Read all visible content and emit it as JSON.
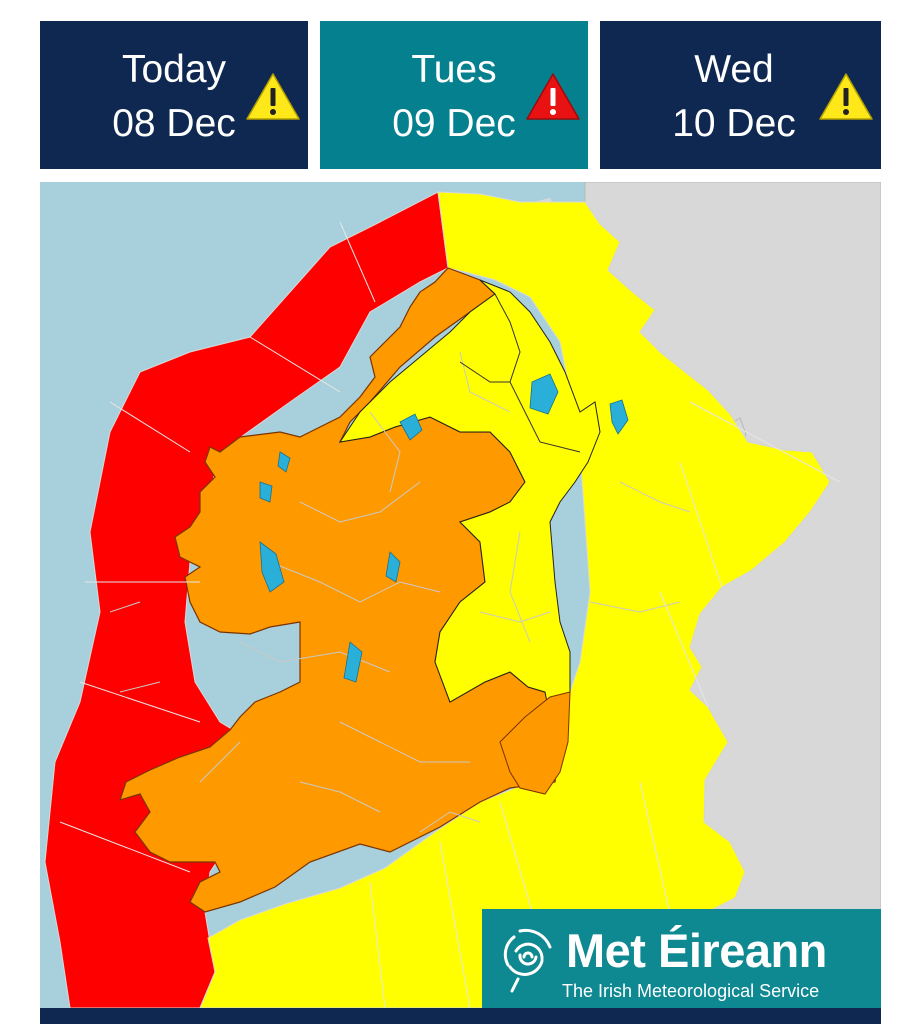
{
  "tabs": [
    {
      "day": "Today",
      "date": "08 Dec",
      "warning_icon": "warning-triangle-icon",
      "warning_color": "#ffe81a",
      "bg_color": "#0f2851"
    },
    {
      "day": "Tues",
      "date": "09 Dec",
      "warning_icon": "warning-triangle-icon",
      "warning_color": "#e81212",
      "bg_color": "#05808f",
      "selected": true
    },
    {
      "day": "Wed",
      "date": "10 Dec",
      "warning_icon": "warning-triangle-icon",
      "warning_color": "#ffe81a",
      "bg_color": "#0f2851"
    }
  ],
  "map": {
    "warning_colors": {
      "red": "#ff0000",
      "orange": "#ff9900",
      "yellow": "#ffff00"
    },
    "sea_color": "#a7d0dc",
    "land_other_color": "#d8d8d8",
    "lake_color": "#2ab0d8"
  },
  "logo": {
    "name": "Met Éireann",
    "tagline": "The Irish Meteorological Service",
    "icon": "swirl-icon"
  }
}
